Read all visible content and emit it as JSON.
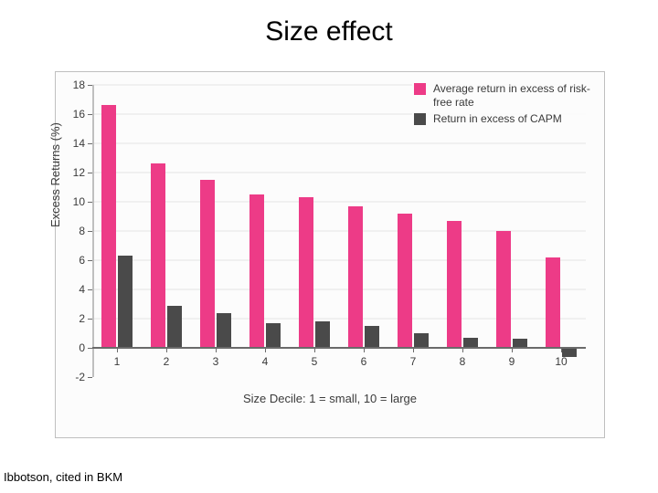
{
  "title": "Size effect",
  "citation": "Ibbotson, cited in BKM",
  "chart": {
    "type": "bar",
    "background_color": "#fcfcfc",
    "border_color": "#bfbfbf",
    "grid_color": "#f0f0f0",
    "zero_line_color": "#6a6a6a",
    "text_color": "#3a3a3a",
    "ylabel": "Excess Returns (%)",
    "xlabel": "Size Decile: 1 = small, 10 = large",
    "ylim": [
      -2,
      18
    ],
    "ytick_step": 2,
    "yticks": [
      -2,
      0,
      2,
      4,
      6,
      8,
      10,
      12,
      14,
      16,
      18
    ],
    "categories": [
      "1",
      "2",
      "3",
      "4",
      "5",
      "6",
      "7",
      "8",
      "9",
      "10"
    ],
    "bar_group_width": 0.62,
    "bar_width": 0.3,
    "label_fontsize": 13,
    "tick_fontsize": 12,
    "series": [
      {
        "name": "Average return in excess of risk-free rate",
        "color": "#ed3b87",
        "values": [
          16.6,
          12.6,
          11.5,
          10.5,
          10.3,
          9.7,
          9.2,
          8.7,
          8.0,
          6.2
        ]
      },
      {
        "name": "Return in excess of CAPM",
        "color": "#4a4a4a",
        "values": [
          6.3,
          2.9,
          2.4,
          1.7,
          1.8,
          1.5,
          1.0,
          0.7,
          0.6,
          -0.6
        ]
      }
    ],
    "legend": {
      "position": "top-right",
      "items": [
        {
          "swatch": "#ed3b87",
          "label": "Average return in excess of risk-free rate"
        },
        {
          "swatch": "#4a4a4a",
          "label": "Return in excess of CAPM"
        }
      ]
    }
  }
}
